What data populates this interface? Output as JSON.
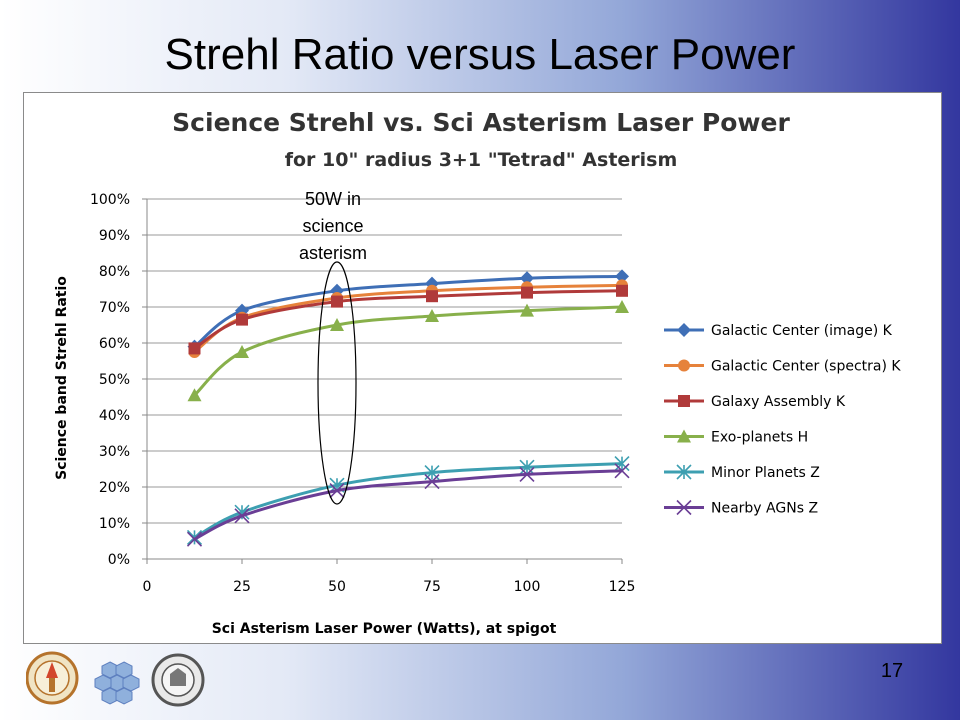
{
  "slide": {
    "title": "Strehl Ratio versus Laser Power",
    "page_number": "17"
  },
  "logos": [
    {
      "name": "caltech-seal",
      "text": "CALIFORNIA INSTITUTE OF TECHNOLOGY"
    },
    {
      "name": "hexagon-mirror-logo"
    },
    {
      "name": "university-of-california-seal",
      "text": "THE UNIVERSITY OF CALIFORNIA"
    }
  ],
  "chart_data": {
    "type": "line",
    "title": "Science Strehl vs. Sci Asterism Laser Power",
    "subtitle": "for 10\" radius 3+1 \"Tetrad\" Asterism",
    "xlabel": "Sci Asterism Laser Power (Watts), at spigot",
    "ylabel": "Science band Strehl Ratio",
    "xlim": [
      0,
      125
    ],
    "ylim": [
      0,
      1
    ],
    "x_ticks": [
      0,
      25,
      50,
      75,
      100,
      125
    ],
    "x_tick_labels": [
      "0",
      "25",
      "50",
      "75",
      "100",
      "125"
    ],
    "y_ticks": [
      0,
      0.1,
      0.2,
      0.3,
      0.4,
      0.5,
      0.6,
      0.7,
      0.8,
      0.9,
      1.0
    ],
    "y_tick_labels": [
      "0%",
      "10%",
      "20%",
      "30%",
      "40%",
      "50%",
      "60%",
      "70%",
      "80%",
      "90%",
      "100%"
    ],
    "grid": "horizontal",
    "legend_position": "right",
    "annotation": {
      "lines": [
        "50W in",
        "science",
        "asterism"
      ],
      "x": 50
    },
    "x": [
      12.5,
      25,
      50,
      75,
      100,
      125
    ],
    "series": [
      {
        "name": "Galactic Center (image) K",
        "color": "#3f6fb6",
        "marker": "diamond",
        "values": [
          0.59,
          0.69,
          0.745,
          0.765,
          0.78,
          0.785
        ]
      },
      {
        "name": "Galactic Center (spectra) K",
        "color": "#e6823b",
        "marker": "circle",
        "values": [
          0.575,
          0.67,
          0.725,
          0.745,
          0.755,
          0.76
        ]
      },
      {
        "name": "Galaxy Assembly K",
        "color": "#b03a3a",
        "marker": "square",
        "values": [
          0.585,
          0.665,
          0.715,
          0.73,
          0.74,
          0.745
        ]
      },
      {
        "name": "Exo-planets H",
        "color": "#88b04b",
        "marker": "triangle",
        "values": [
          0.455,
          0.575,
          0.65,
          0.675,
          0.69,
          0.7
        ]
      },
      {
        "name": "Minor Planets Z",
        "color": "#3d9fb1",
        "marker": "asterisk",
        "values": [
          0.06,
          0.13,
          0.205,
          0.24,
          0.255,
          0.265
        ]
      },
      {
        "name": "Nearby AGNs Z",
        "color": "#6a3e95",
        "marker": "x",
        "values": [
          0.055,
          0.12,
          0.19,
          0.215,
          0.235,
          0.245
        ]
      }
    ]
  }
}
